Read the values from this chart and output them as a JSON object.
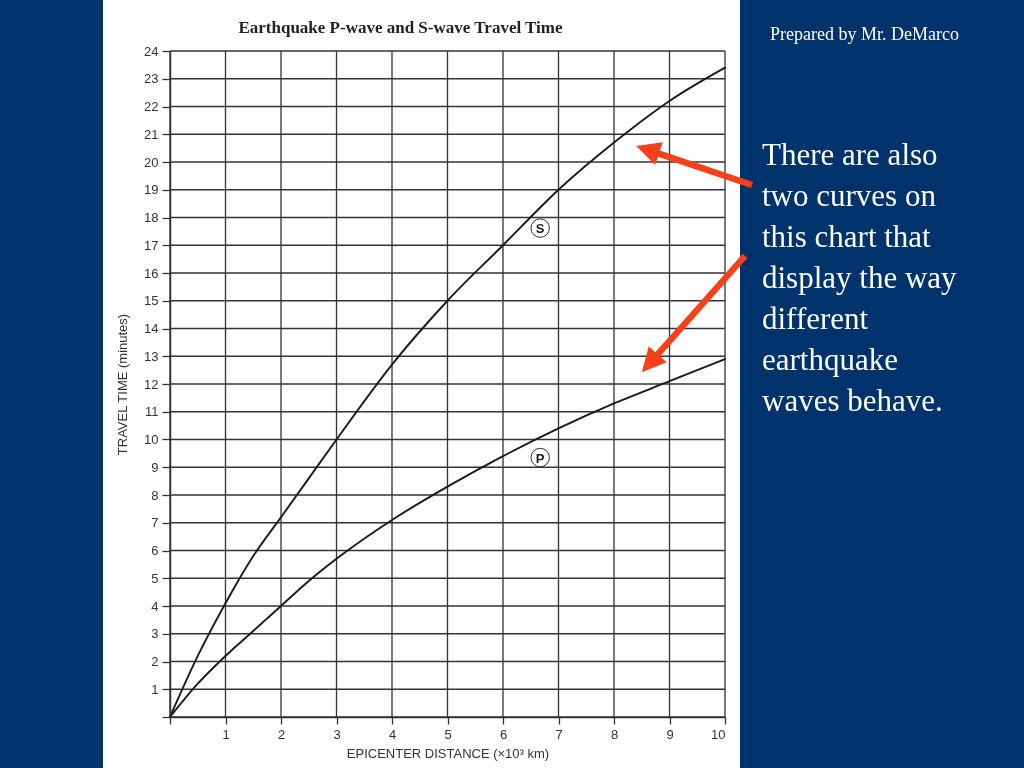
{
  "chart_data": {
    "type": "line",
    "title": "Earthquake P-wave and S-wave Travel Time",
    "xlabel": "EPICENTER DISTANCE (×10³ km)",
    "ylabel": "TRAVEL TIME (minutes)",
    "x": [
      0,
      0.5,
      1,
      1.5,
      2,
      2.5,
      3,
      4,
      5,
      6,
      7,
      8,
      9,
      10
    ],
    "series": [
      {
        "name": "S",
        "color": "#1a1a1a",
        "values": [
          0,
          2.2,
          4.1,
          5.8,
          7.2,
          8.6,
          10.0,
          12.7,
          15.0,
          17.0,
          19.0,
          20.7,
          22.2,
          23.4
        ]
      },
      {
        "name": "P",
        "color": "#1a1a1a",
        "values": [
          0,
          1.2,
          2.2,
          3.1,
          4.0,
          4.9,
          5.7,
          7.1,
          8.3,
          9.4,
          10.4,
          11.3,
          12.1,
          12.9
        ]
      }
    ],
    "xlim": [
      0,
      10
    ],
    "ylim": [
      0,
      24
    ],
    "xticks": [
      {
        "value": 0,
        "label": null
      },
      1,
      2,
      3,
      4,
      5,
      6,
      7,
      8,
      9,
      10
    ],
    "yticks": [
      {
        "value": 0,
        "label": null
      },
      1,
      2,
      3,
      4,
      5,
      6,
      7,
      8,
      9,
      10,
      11,
      12,
      13,
      14,
      15,
      16,
      17,
      18,
      19,
      20,
      21,
      22,
      23,
      24
    ],
    "grid": true,
    "line_style": "solid",
    "annotations": [
      "Prepared by Mr. DeMarco",
      "There are also two curves on this chart that display the way different earthquake waves behave."
    ]
  }
}
